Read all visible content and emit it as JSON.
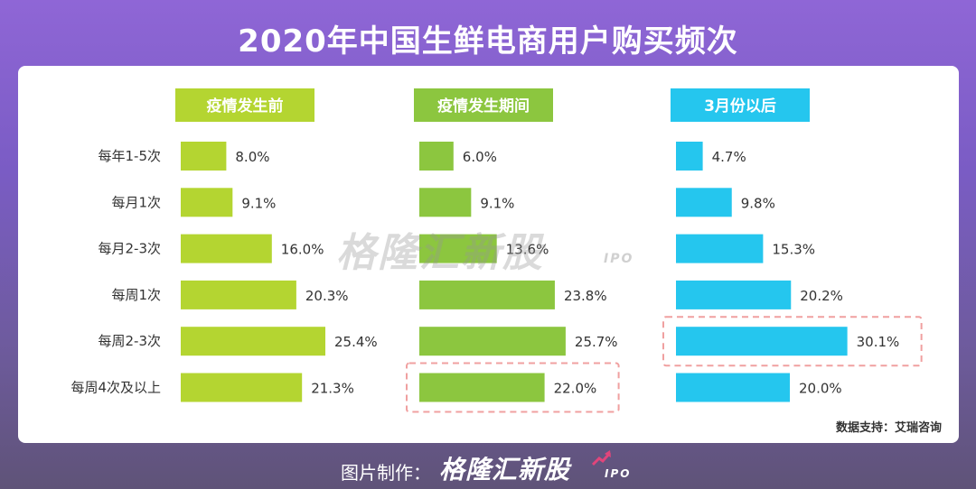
{
  "title": "2020年中国生鲜电商用户购买频次",
  "source": "数据支持：艾瑞咨询",
  "footer": {
    "credit": "图片制作：",
    "logo": "格隆汇新股",
    "logo_suffix": "IPO"
  },
  "watermark": {
    "text": "格隆汇新股",
    "suffix": "IPO"
  },
  "colors": {
    "green_light": "#b4d531",
    "green": "#8cc63f",
    "cyan": "#25c6ee",
    "highlight_border": "#f0a0a0"
  },
  "chart_data": {
    "type": "bar",
    "orientation": "horizontal",
    "categories": [
      "每年1-5次",
      "每月1次",
      "每月2-3次",
      "每周1次",
      "每周2-3次",
      "每周4次及以上"
    ],
    "series": [
      {
        "name": "疫情发生前",
        "values": [
          8.0,
          9.1,
          16.0,
          20.3,
          25.4,
          21.3
        ],
        "labels": [
          "8.0%",
          "9.1%",
          "16.0%",
          "20.3%",
          "25.4%",
          "21.3%"
        ],
        "color": "#b4d531",
        "highlight_index": null
      },
      {
        "name": "疫情发生期间",
        "values": [
          6.0,
          9.1,
          13.6,
          23.8,
          25.7,
          22.0
        ],
        "labels": [
          "6.0%",
          "9.1%",
          "13.6%",
          "23.8%",
          "25.7%",
          "22.0%"
        ],
        "color": "#8cc63f",
        "highlight_index": 5
      },
      {
        "name": "3月份以后",
        "values": [
          4.7,
          9.8,
          15.3,
          20.2,
          30.1,
          20.0
        ],
        "labels": [
          "4.7%",
          "9.8%",
          "15.3%",
          "20.2%",
          "30.1%",
          "20.0%"
        ],
        "color": "#25c6ee",
        "highlight_index": 4
      }
    ],
    "xlim": [
      0,
      32
    ],
    "grid": false,
    "legend": "none"
  }
}
